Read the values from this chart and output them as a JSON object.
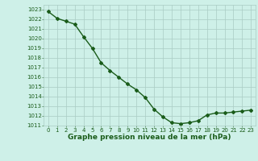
{
  "x": [
    0,
    1,
    2,
    3,
    4,
    5,
    6,
    7,
    8,
    9,
    10,
    11,
    12,
    13,
    14,
    15,
    16,
    17,
    18,
    19,
    20,
    21,
    22,
    23
  ],
  "y": [
    1022.8,
    1022.1,
    1021.8,
    1021.5,
    1020.2,
    1019.0,
    1017.5,
    1016.7,
    1016.0,
    1015.3,
    1014.7,
    1013.9,
    1012.7,
    1011.9,
    1011.3,
    1011.2,
    1011.3,
    1011.5,
    1012.1,
    1012.3,
    1012.3,
    1012.4,
    1012.5,
    1012.6
  ],
  "ylim": [
    1011,
    1023
  ],
  "xlim": [
    0,
    23
  ],
  "line_color": "#1a5c1a",
  "marker": "D",
  "marker_size": 2.0,
  "bg_color": "#cef0e8",
  "grid_color": "#aaccc4",
  "xlabel": "Graphe pression niveau de la mer (hPa)",
  "xlabel_color": "#1a5c1a",
  "xlabel_fontsize": 6.5,
  "tick_fontsize": 5.0,
  "tick_color": "#1a5c1a",
  "linewidth": 1.0
}
